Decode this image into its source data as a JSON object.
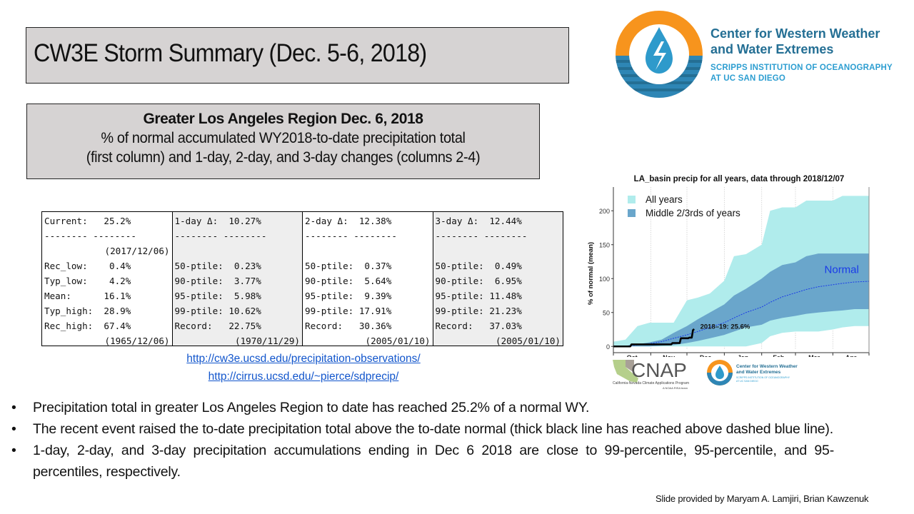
{
  "slide": {
    "title": "CW3E Storm Summary (Dec. 5-6, 2018)",
    "subtitle": {
      "line1": "Greater Los Angeles Region Dec. 6, 2018",
      "line2": "% of normal accumulated WY2018-to-date precipitation total",
      "line3": "(first column) and 1-day, 2-day, and 3-day changes (columns 2-4)"
    },
    "logo": {
      "org_name_line1": "Center for Western Weather",
      "org_name_line2": "and Water Extremes",
      "institution_line1": "SCRIPPS INSTITUTION OF OCEANOGRAPHY",
      "institution_line2": "AT UC SAN DIEGO",
      "colors": {
        "orange": "#f7941d",
        "blue": "#2e86b5",
        "dark_blue": "#246f94",
        "light_blue": "#2d9ed1"
      }
    }
  },
  "stats_table": {
    "columns": [
      {
        "header": "Current:   25.2%",
        "separator": "-------- --------",
        "date_top": "(2017/12/06)",
        "rows": [
          "Rec_low:    0.4%",
          "Typ_low:    4.2%",
          "Mean:      16.1%",
          "Typ_high:  28.9%",
          "Rec_high:  67.4%"
        ],
        "date_bottom": "(1965/12/06)"
      },
      {
        "header": "1-day Δ:  10.27%",
        "separator": "-------- --------",
        "date_top": "",
        "rows": [
          "50-ptile:  0.23%",
          "90-ptile:  3.77%",
          "95-ptile:  5.98%",
          "99-ptile: 10.62%",
          "Record:   22.75%"
        ],
        "date_bottom": "(1970/11/29)"
      },
      {
        "header": "2-day Δ:  12.38%",
        "separator": "-------- --------",
        "date_top": "",
        "rows": [
          "50-ptile:  0.37%",
          "90-ptile:  5.64%",
          "95-ptile:  9.39%",
          "99-ptile: 17.91%",
          "Record:   30.36%"
        ],
        "date_bottom": "(2005/01/10)"
      },
      {
        "header": "3-day Δ:  12.44%",
        "separator": "-------- --------",
        "date_top": "",
        "rows": [
          "50-ptile:  0.49%",
          "90-ptile:  6.95%",
          "95-ptile: 11.48%",
          "99-ptile: 21.23%",
          "Record:   37.03%"
        ],
        "date_bottom": "(2005/01/10)"
      }
    ]
  },
  "links": [
    "http://cw3e.ucsd.edu/precipitation-observations/",
    "http://cirrus.ucsd.edu/~pierce/sdprecip/"
  ],
  "bullets": [
    "Precipitation total in greater Los Angeles Region to date has reached 25.2% of a normal WY.",
    "The recent event raised the to-date precipitation total above the to-date normal (thick black line has reached above dashed blue line).",
    " 1-day, 2-day, and 3-day precipitation accumulations ending in Dec 6 2018 are close to 99-percentile, 95-percentile, and 95-percentiles, respectively."
  ],
  "credit": "Slide provided by Maryam A. Lamjiri, Brian Kawzenuk",
  "bottom_logos": {
    "cnap_name": "CNAP",
    "cnap_full": "California-Nevada Climate Applications Program",
    "cnap_sub": "A NOAA RISA team",
    "cw3e_line1": "Center for Western Weather",
    "cw3e_line2": "and Water Extremes",
    "cw3e_line3": "SCRIPPS INSTITUTION OF OCEANOGRAPHY",
    "cw3e_line4": "AT UC SAN DIEGO"
  },
  "chart_data": {
    "type": "area",
    "title": "LA_basin precip for all years, data through 2018/12/07",
    "xlabel": "",
    "ylabel": "% of normal (mean)",
    "x_ticks": [
      "Oct",
      "Nov",
      "Dec",
      "Jan",
      "Feb",
      "Mar",
      "Apr"
    ],
    "xlim_days": [
      0,
      212
    ],
    "ylim": [
      -5,
      235
    ],
    "y_ticks": [
      0,
      50,
      100,
      150,
      200
    ],
    "grid": true,
    "legend": {
      "position": "top-left",
      "entries": [
        {
          "label": "All years",
          "color": "#b0ecec"
        },
        {
          "label": "Middle 2/3rds of years",
          "color": "#6aa6cb"
        }
      ]
    },
    "annotations": [
      {
        "text": "Normal",
        "color": "#1a3be8",
        "x_day": 175,
        "y": 108
      },
      {
        "text": "2018–19: 25.6%",
        "color": "#111111",
        "x_day": 72,
        "y": 26
      }
    ],
    "x_days": [
      0,
      10,
      20,
      30,
      40,
      50,
      61,
      70,
      80,
      92,
      100,
      110,
      123,
      130,
      140,
      151,
      160,
      170,
      182,
      190,
      200,
      212
    ],
    "series": [
      {
        "name": "All years max",
        "color": "#b0ecec",
        "upper": [
          7,
          10,
          30,
          35,
          35,
          35,
          68,
          72,
          78,
          97,
          133,
          136,
          150,
          200,
          205,
          205,
          215,
          215,
          215,
          222,
          222,
          222
        ],
        "lower": [
          0,
          0,
          0,
          0,
          0,
          0,
          0,
          0,
          0,
          0,
          0,
          0,
          5,
          15,
          20,
          22,
          22,
          22,
          25,
          28,
          30,
          30
        ]
      },
      {
        "name": "Middle 2/3rds",
        "color": "#6aa6cb",
        "upper": [
          0,
          1,
          3,
          6,
          10,
          20,
          30,
          40,
          50,
          62,
          75,
          85,
          100,
          110,
          120,
          124,
          133,
          137,
          137,
          137,
          137,
          137
        ],
        "lower": [
          0,
          0,
          0,
          0,
          1,
          2,
          5,
          8,
          12,
          17,
          22,
          28,
          32,
          38,
          42,
          45,
          48,
          50,
          52,
          53,
          55,
          55
        ]
      },
      {
        "name": "Normal",
        "color": "#1a3be8",
        "style": "dashed",
        "values": [
          0,
          0.5,
          2,
          4,
          7,
          12,
          17,
          22,
          28,
          35,
          42,
          50,
          58,
          65,
          73,
          79,
          84,
          88,
          91,
          93,
          95,
          96
        ]
      },
      {
        "name": "2018-19",
        "color": "#000000",
        "x_days": [
          0,
          10,
          14,
          15,
          25,
          40,
          48,
          49,
          55,
          56,
          62,
          63,
          65,
          66,
          67
        ],
        "values": [
          0,
          0,
          0,
          3,
          3,
          3,
          3,
          5,
          5,
          12,
          12,
          13,
          13,
          24,
          25.6
        ]
      }
    ]
  }
}
